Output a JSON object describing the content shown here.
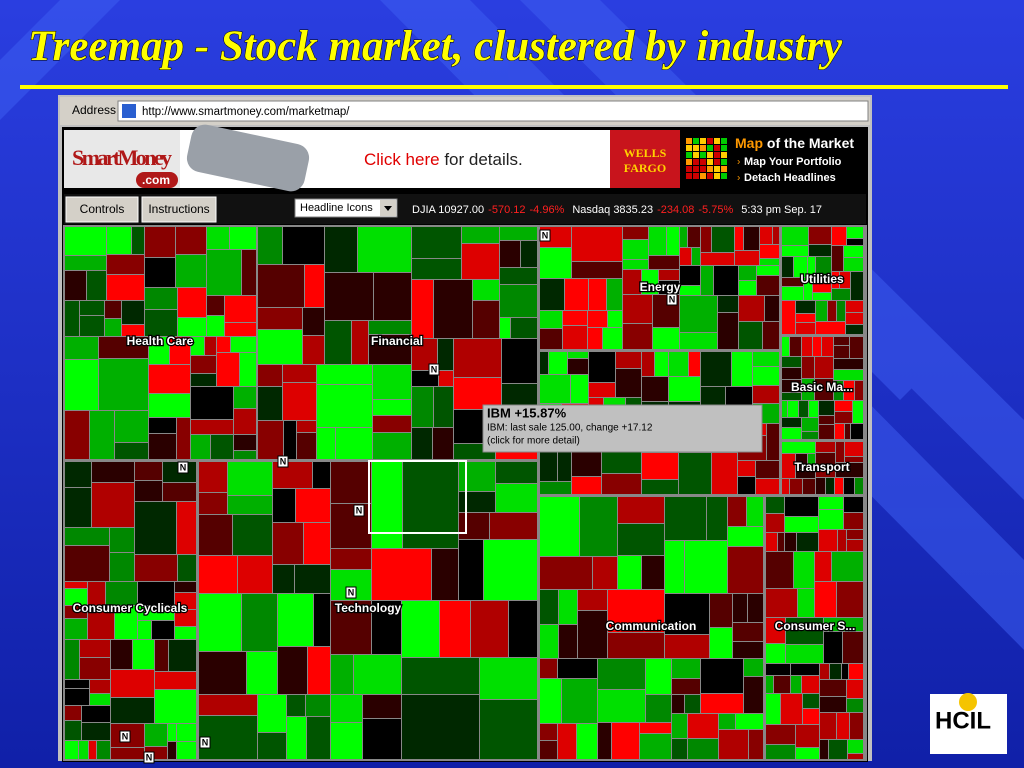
{
  "title": "Treemap - Stock market, clustered by industry",
  "browser": {
    "address_label": "Address",
    "url": "http://www.smartmoney.com/marketmap/"
  },
  "banner": {
    "logo": "SmartMoney",
    "logo_suffix": ".com",
    "ad_link": "Click here",
    "ad_rest": " for details.",
    "sponsor": [
      "WELLS",
      "FARGO"
    ],
    "product": "Map",
    "product_rest": " of the Market",
    "links": [
      "Map Your Portfolio",
      "Detach Headlines"
    ]
  },
  "toolbar": {
    "buttons": [
      "Controls",
      "Instructions"
    ],
    "dropdown": "Headline Icons",
    "djia": "DJIA 10927.00",
    "djia_change": "-570.12",
    "djia_pct": "-4.96%",
    "nasdaq": "Nasdaq 3835.23",
    "nasdaq_change": "-234.08",
    "nasdaq_pct": "-5.75%",
    "time": "5:33 pm  Sep. 17"
  },
  "sectors": [
    "Health Care",
    "Financial",
    "Energy",
    "Utilities",
    "Basic Ma...",
    "Transport",
    "Consumer Cyclicals",
    "Technology",
    "Communication",
    "Consumer S..."
  ],
  "news_marker": "N",
  "tooltip": {
    "title": "IBM +15.87%",
    "detail": "IBM: last sale 125.00,  change +17.12",
    "hint": "(click for more detail)"
  },
  "logo": "HCIL"
}
